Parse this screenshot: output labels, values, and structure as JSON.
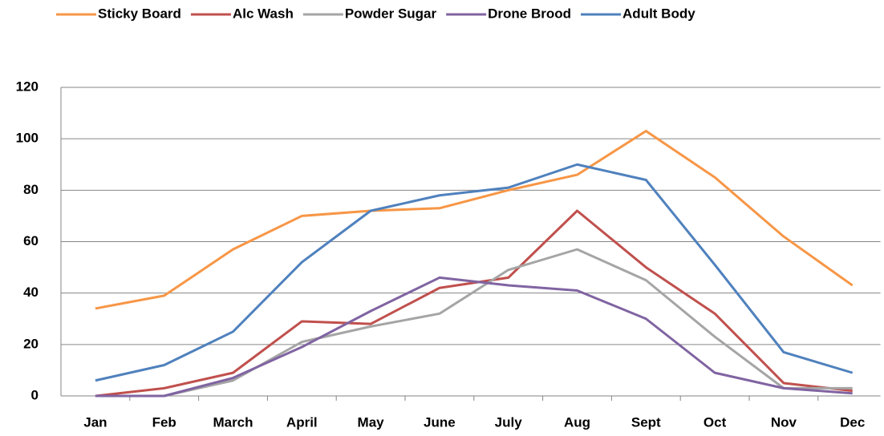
{
  "chart_data": {
    "type": "line",
    "categories": [
      "Jan",
      "Feb",
      "March",
      "April",
      "May",
      "June",
      "July",
      "Aug",
      "Sept",
      "Oct",
      "Nov",
      "Dec"
    ],
    "series": [
      {
        "name": "Sticky Board",
        "color": "#f79646",
        "values": [
          34,
          39,
          57,
          70,
          72,
          73,
          80,
          86,
          103,
          85,
          62,
          43
        ]
      },
      {
        "name": "Alc Wash",
        "color": "#c0504d",
        "values": [
          0,
          3,
          9,
          29,
          28,
          42,
          46,
          72,
          50,
          32,
          5,
          2
        ]
      },
      {
        "name": "Powder Sugar",
        "color": "#a5a5a5",
        "values": [
          0,
          0,
          6,
          21,
          27,
          32,
          49,
          57,
          45,
          23,
          3,
          3
        ]
      },
      {
        "name": "Drone Brood",
        "color": "#8064a2",
        "values": [
          0,
          0,
          7,
          19,
          33,
          46,
          43,
          41,
          30,
          9,
          3,
          1
        ]
      },
      {
        "name": "Adult Body",
        "color": "#4f81bd",
        "values": [
          6,
          12,
          25,
          52,
          72,
          78,
          81,
          90,
          84,
          51,
          17,
          9
        ]
      }
    ],
    "ylim": [
      0,
      120
    ],
    "yticks": [
      0,
      20,
      40,
      60,
      80,
      100,
      120
    ],
    "grid": true,
    "legend": "top"
  }
}
